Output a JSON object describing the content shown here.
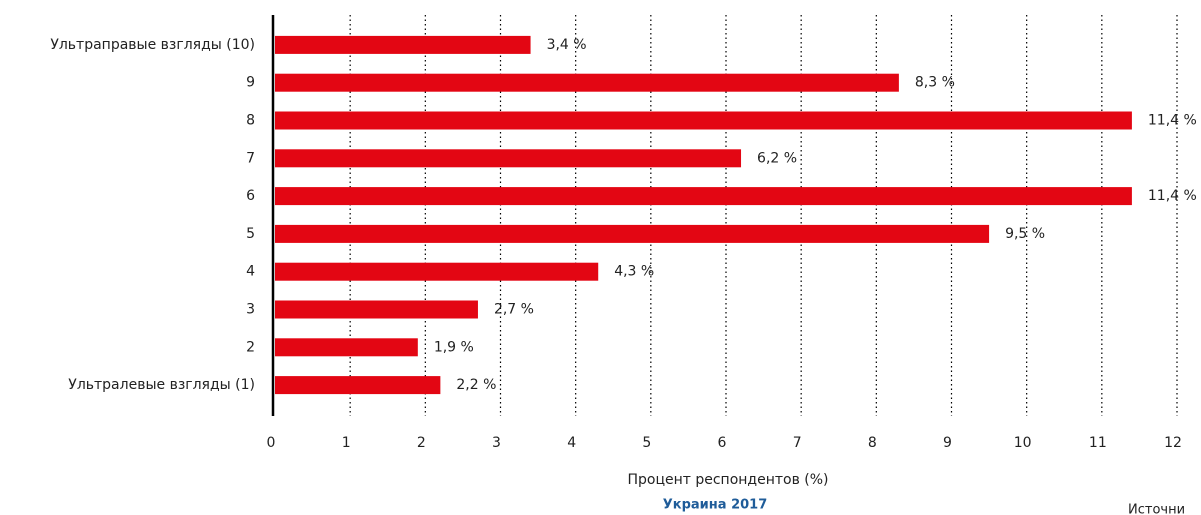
{
  "chart_data": {
    "type": "bar",
    "orientation": "horizontal",
    "categories": [
      "Ультраправые взгляды (10)",
      "9",
      "8",
      "7",
      "6",
      "5",
      "4",
      "3",
      "2",
      "Ультралевые взгляды (1)"
    ],
    "values": [
      3.4,
      8.3,
      11.4,
      6.2,
      11.4,
      9.5,
      4.3,
      2.7,
      1.9,
      2.2
    ],
    "value_labels": [
      "3,4 %",
      "8,3 %",
      "11,4 %",
      "6,2 %",
      "11,4 %",
      "9,5 %",
      "4,3 %",
      "2,7 %",
      "1,9 %",
      "2,2 %"
    ],
    "color": "#e30613",
    "xlim": [
      0,
      12
    ],
    "xticks": [
      0,
      1,
      2,
      3,
      4,
      5,
      6,
      7,
      8,
      9,
      10,
      11,
      12
    ],
    "grid": true,
    "xlabel": "Процент респондентов (%)",
    "subtitle": "Украина 2017",
    "source": "Источни"
  }
}
